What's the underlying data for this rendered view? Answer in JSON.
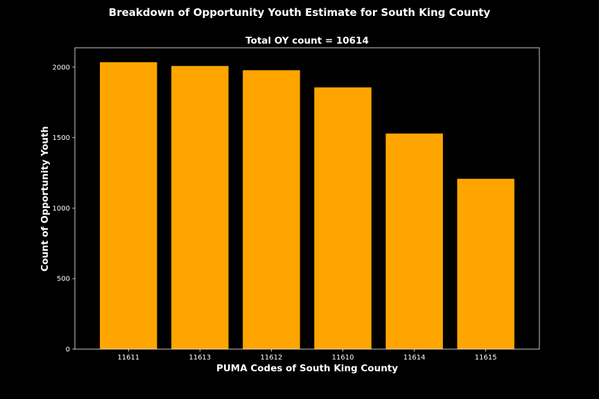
{
  "suptitle": "Breakdown of Opportunity Youth Estimate for South King County",
  "chart_data": {
    "type": "bar",
    "title": "Total OY count = 10614",
    "xlabel": "PUMA Codes of South King County",
    "ylabel": "Count of Opportunity Youth",
    "categories": [
      "11611",
      "11613",
      "11612",
      "11610",
      "11614",
      "11615"
    ],
    "values": [
      2035,
      2008,
      1978,
      1856,
      1529,
      1208
    ],
    "ylim": [
      0,
      2137
    ],
    "yticks": [
      0,
      500,
      1000,
      1500,
      2000
    ],
    "bar_color": "#FFA500",
    "background": "#000000",
    "axes_edge_color": "#FFFFFF",
    "text_color": "#FFFFFF",
    "grid": false,
    "legend": "none"
  }
}
